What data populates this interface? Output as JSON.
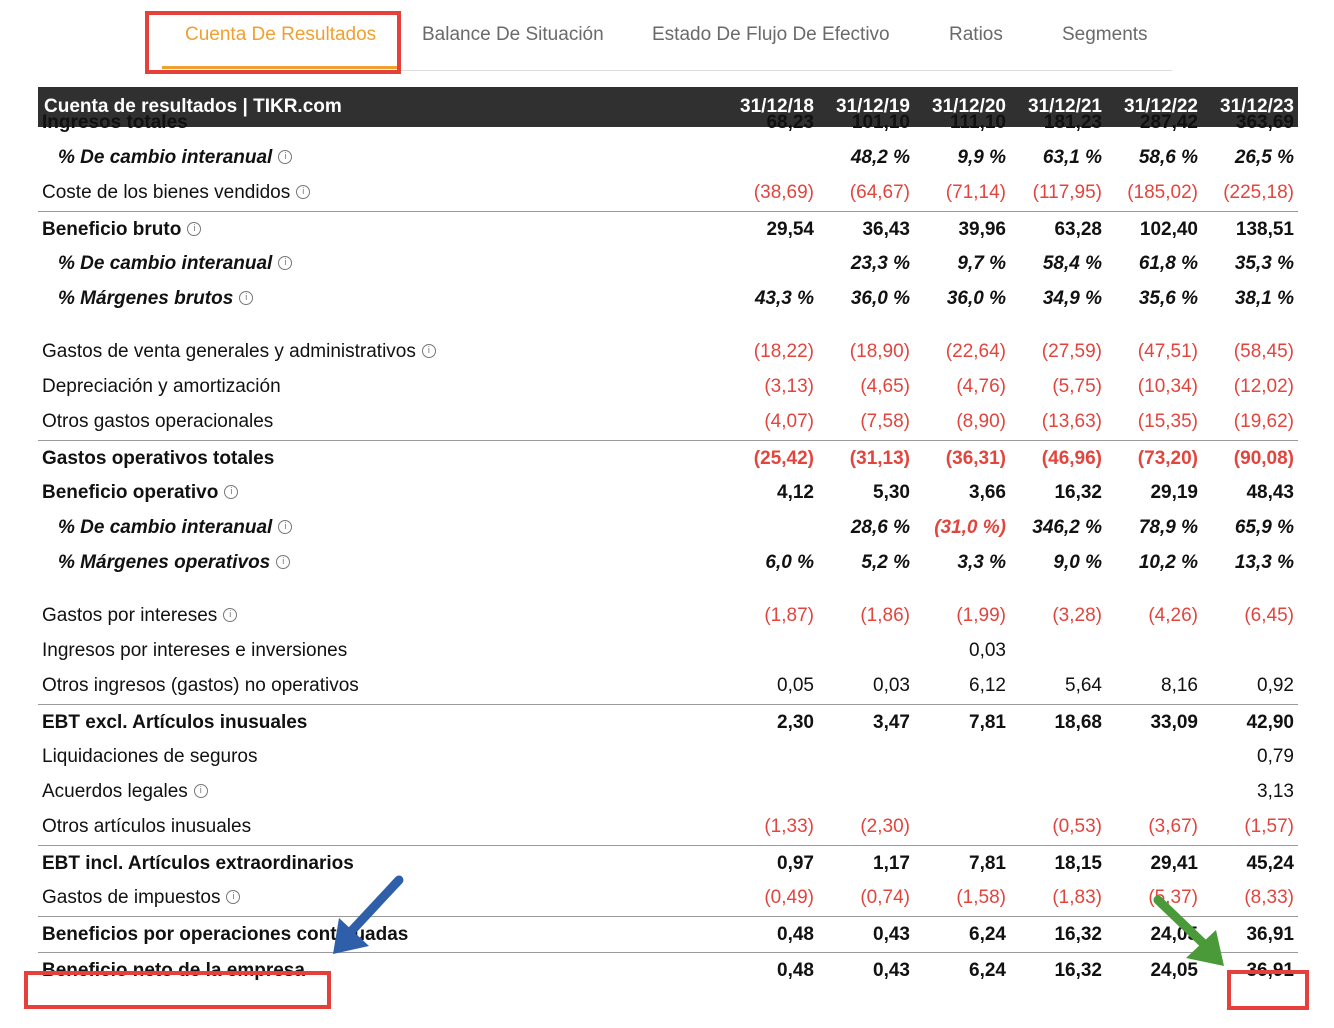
{
  "tabs": [
    {
      "label": "Cuenta De Resultados",
      "active": true
    },
    {
      "label": "Balance De Situación",
      "active": false
    },
    {
      "label": "Estado De Flujo De Efectivo",
      "active": false
    },
    {
      "label": "Ratios",
      "active": false
    },
    {
      "label": "Segments",
      "active": false
    }
  ],
  "table": {
    "title": "Cuenta de resultados | TIKR.com",
    "columns": [
      "31/12/18",
      "31/12/19",
      "31/12/20",
      "31/12/21",
      "31/12/22",
      "31/12/23"
    ],
    "rows": [
      {
        "label": "Ingresos totales",
        "style": "bold",
        "info": false,
        "values": [
          "68,23",
          "101,10",
          "111,10",
          "181,23",
          "287,42",
          "363,69"
        ]
      },
      {
        "label": "% De cambio interanual",
        "style": "italic",
        "info": true,
        "values": [
          "",
          "48,2 %",
          "9,9 %",
          "63,1 %",
          "58,6 %",
          "26,5 %"
        ]
      },
      {
        "label": "Coste de los bienes vendidos",
        "style": "normal",
        "info": true,
        "values": [
          "(38,69)",
          "(64,67)",
          "(71,14)",
          "(117,95)",
          "(185,02)",
          "(225,18)"
        ]
      },
      {
        "label": "Beneficio bruto",
        "style": "bold",
        "info": true,
        "values": [
          "29,54",
          "36,43",
          "39,96",
          "63,28",
          "102,40",
          "138,51"
        ]
      },
      {
        "label": "% De cambio interanual",
        "style": "italic",
        "info": true,
        "values": [
          "",
          "23,3 %",
          "9,7 %",
          "58,4 %",
          "61,8 %",
          "35,3 %"
        ]
      },
      {
        "label": "% Márgenes brutos",
        "style": "italic",
        "info": true,
        "values": [
          "43,3 %",
          "36,0 %",
          "36,0 %",
          "34,9 %",
          "35,6 %",
          "38,1 %"
        ]
      },
      {
        "label": "Gastos de venta generales y administrativos",
        "style": "normal",
        "info": true,
        "values": [
          "(18,22)",
          "(18,90)",
          "(22,64)",
          "(27,59)",
          "(47,51)",
          "(58,45)"
        ]
      },
      {
        "label": "Depreciación y amortización",
        "style": "normal",
        "info": false,
        "values": [
          "(3,13)",
          "(4,65)",
          "(4,76)",
          "(5,75)",
          "(10,34)",
          "(12,02)"
        ]
      },
      {
        "label": "Otros gastos operacionales",
        "style": "normal",
        "info": false,
        "values": [
          "(4,07)",
          "(7,58)",
          "(8,90)",
          "(13,63)",
          "(15,35)",
          "(19,62)"
        ]
      },
      {
        "label": "Gastos operativos totales",
        "style": "bold",
        "info": false,
        "values": [
          "(25,42)",
          "(31,13)",
          "(36,31)",
          "(46,96)",
          "(73,20)",
          "(90,08)"
        ]
      },
      {
        "label": "Beneficio operativo",
        "style": "bold",
        "info": true,
        "values": [
          "4,12",
          "5,30",
          "3,66",
          "16,32",
          "29,19",
          "48,43"
        ]
      },
      {
        "label": "% De cambio interanual",
        "style": "italic",
        "info": true,
        "values": [
          "",
          "28,6 %",
          "(31,0 %)",
          "346,2 %",
          "78,9 %",
          "65,9 %"
        ]
      },
      {
        "label": "% Márgenes operativos",
        "style": "italic",
        "info": true,
        "values": [
          "6,0 %",
          "5,2 %",
          "3,3 %",
          "9,0 %",
          "10,2 %",
          "13,3 %"
        ]
      },
      {
        "label": "Gastos por intereses",
        "style": "normal",
        "info": true,
        "values": [
          "(1,87)",
          "(1,86)",
          "(1,99)",
          "(3,28)",
          "(4,26)",
          "(6,45)"
        ]
      },
      {
        "label": "Ingresos por intereses e inversiones",
        "style": "normal",
        "info": false,
        "values": [
          "",
          "",
          "0,03",
          "",
          "",
          ""
        ]
      },
      {
        "label": "Otros ingresos (gastos) no operativos",
        "style": "normal",
        "info": false,
        "values": [
          "0,05",
          "0,03",
          "6,12",
          "5,64",
          "8,16",
          "0,92"
        ]
      },
      {
        "label": "EBT excl. Artículos inusuales",
        "style": "bold",
        "info": false,
        "values": [
          "2,30",
          "3,47",
          "7,81",
          "18,68",
          "33,09",
          "42,90"
        ]
      },
      {
        "label": "Liquidaciones de seguros",
        "style": "normal",
        "info": false,
        "values": [
          "",
          "",
          "",
          "",
          "",
          "0,79"
        ]
      },
      {
        "label": "Acuerdos legales",
        "style": "normal",
        "info": true,
        "values": [
          "",
          "",
          "",
          "",
          "",
          "3,13"
        ]
      },
      {
        "label": "Otros artículos inusuales",
        "style": "normal",
        "info": false,
        "values": [
          "(1,33)",
          "(2,30)",
          "",
          "(0,53)",
          "(3,67)",
          "(1,57)"
        ]
      },
      {
        "label": "EBT incl. Artículos extraordinarios",
        "style": "bold",
        "info": false,
        "values": [
          "0,97",
          "1,17",
          "7,81",
          "18,15",
          "29,41",
          "45,24"
        ]
      },
      {
        "label": "Gastos de impuestos",
        "style": "normal",
        "info": true,
        "values": [
          "(0,49)",
          "(0,74)",
          "(1,58)",
          "(1,83)",
          "(5,37)",
          "(8,33)"
        ]
      },
      {
        "label": "Beneficios por operaciones continuadas",
        "style": "bold",
        "info": false,
        "values": [
          "0,48",
          "0,43",
          "6,24",
          "16,32",
          "24,05",
          "36,91"
        ]
      },
      {
        "label": "Beneficio neto de la empresa",
        "style": "bold",
        "info": false,
        "values": [
          "0,48",
          "0,43",
          "6,24",
          "16,32",
          "24,05",
          "36,91"
        ]
      }
    ]
  },
  "colors": {
    "accent": "#f0a030",
    "negative": "#e1453e",
    "highlight": "#e5413a",
    "header_bg": "#303030",
    "arrow_blue": "#2f5fa8",
    "arrow_green": "#4a9a3a"
  }
}
